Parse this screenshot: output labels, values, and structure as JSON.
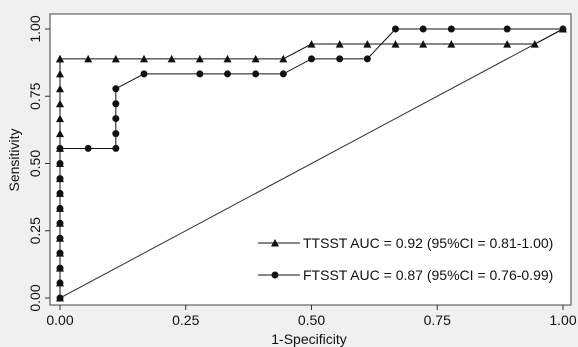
{
  "chart_data": {
    "type": "line",
    "title": "",
    "xlabel": "1-Specificity",
    "ylabel": "Sensitivity",
    "xlim": [
      0,
      1
    ],
    "ylim": [
      0,
      1
    ],
    "xticks": [
      "0.00",
      "0.25",
      "0.50",
      "0.75",
      "1.00"
    ],
    "yticks": [
      "0.00",
      "0.25",
      "0.50",
      "0.75",
      "1.00"
    ],
    "xtick_values": [
      0,
      0.25,
      0.5,
      0.75,
      1
    ],
    "ytick_values": [
      0,
      0.25,
      0.5,
      0.75,
      1
    ],
    "grid": false,
    "legend_position": "bottom-right",
    "reference_line": {
      "x": [
        0,
        1
      ],
      "y": [
        0,
        1
      ]
    },
    "series": [
      {
        "name": "TTSST AUC = 0.92 (95%CI = 0.81-1.00)",
        "marker": "triangle",
        "color": "#111111",
        "x": [
          0,
          0,
          0,
          0,
          0,
          0,
          0,
          0,
          0,
          0,
          0,
          0,
          0,
          0,
          0,
          0,
          0,
          0,
          0.056,
          0.111,
          0.167,
          0.222,
          0.278,
          0.333,
          0.389,
          0.444,
          0.5,
          0.556,
          0.611,
          0.667,
          0.722,
          0.778,
          0.889,
          0.944,
          1
        ],
        "y": [
          0,
          0.056,
          0.111,
          0.167,
          0.222,
          0.278,
          0.333,
          0.389,
          0.444,
          0.5,
          0.556,
          0.611,
          0.667,
          0.722,
          0.778,
          0.833,
          0.889,
          0.889,
          0.889,
          0.889,
          0.889,
          0.889,
          0.889,
          0.889,
          0.889,
          0.889,
          0.944,
          0.944,
          0.944,
          0.944,
          0.944,
          0.944,
          0.944,
          0.944,
          1
        ]
      },
      {
        "name": "FTSST AUC = 0.87 (95%CI = 0.76-0.99)",
        "marker": "circle",
        "color": "#111111",
        "x": [
          0,
          0,
          0,
          0,
          0,
          0,
          0,
          0,
          0,
          0,
          0,
          0.056,
          0.111,
          0.111,
          0.111,
          0.111,
          0.111,
          0.167,
          0.278,
          0.333,
          0.389,
          0.444,
          0.5,
          0.556,
          0.611,
          0.667,
          0.722,
          0.778,
          0.889,
          1
        ],
        "y": [
          0,
          0.056,
          0.111,
          0.167,
          0.222,
          0.278,
          0.333,
          0.389,
          0.444,
          0.5,
          0.556,
          0.556,
          0.556,
          0.611,
          0.667,
          0.722,
          0.778,
          0.833,
          0.833,
          0.833,
          0.833,
          0.833,
          0.889,
          0.889,
          0.889,
          1,
          1,
          1,
          1,
          1
        ]
      }
    ]
  }
}
